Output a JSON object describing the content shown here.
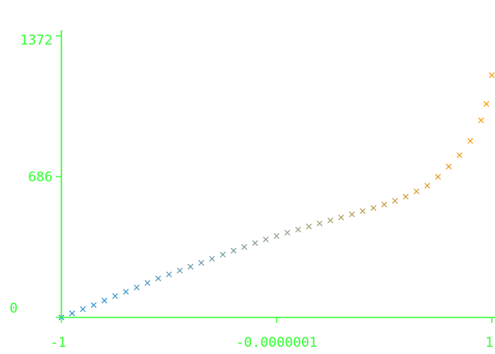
{
  "chart_data": {
    "type": "scatter",
    "title": "",
    "xlabel": "",
    "ylabel": "",
    "xlim": [
      -1,
      1
    ],
    "ylim": [
      0,
      1372
    ],
    "x_ticks": [
      {
        "value": -1,
        "label": "-1"
      },
      {
        "value": -1e-07,
        "label": "-0.0000001"
      },
      {
        "value": 1,
        "label": "1"
      }
    ],
    "y_ticks": [
      {
        "value": 0,
        "label": "0"
      },
      {
        "value": 686,
        "label": "686"
      },
      {
        "value": 1372,
        "label": "1372"
      }
    ],
    "marker": "x",
    "color_gradient": [
      "#1e8fe0",
      "#8f9f88",
      "#ff9900"
    ],
    "grid": false,
    "legend": "none",
    "series": [
      {
        "points": [
          [
            -1.0,
            0
          ],
          [
            -0.95,
            20
          ],
          [
            -0.9,
            40
          ],
          [
            -0.85,
            60
          ],
          [
            -0.8,
            82
          ],
          [
            -0.75,
            104
          ],
          [
            -0.7,
            125
          ],
          [
            -0.65,
            146
          ],
          [
            -0.6,
            168
          ],
          [
            -0.55,
            190
          ],
          [
            -0.5,
            210
          ],
          [
            -0.45,
            228
          ],
          [
            -0.4,
            247
          ],
          [
            -0.35,
            266
          ],
          [
            -0.3,
            286
          ],
          [
            -0.25,
            306
          ],
          [
            -0.2,
            325
          ],
          [
            -0.15,
            343
          ],
          [
            -0.1,
            362
          ],
          [
            -0.05,
            380
          ],
          [
            0.0,
            397
          ],
          [
            0.05,
            413
          ],
          [
            0.1,
            428
          ],
          [
            0.15,
            443
          ],
          [
            0.2,
            458
          ],
          [
            0.25,
            473
          ],
          [
            0.3,
            487
          ],
          [
            0.35,
            502
          ],
          [
            0.4,
            518
          ],
          [
            0.45,
            533
          ],
          [
            0.5,
            550
          ],
          [
            0.55,
            568
          ],
          [
            0.6,
            588
          ],
          [
            0.65,
            614
          ],
          [
            0.7,
            642
          ],
          [
            0.75,
            685
          ],
          [
            0.8,
            735
          ],
          [
            0.85,
            790
          ],
          [
            0.9,
            860
          ],
          [
            0.95,
            960
          ],
          [
            0.975,
            1040
          ],
          [
            1.0,
            1180
          ]
        ]
      }
    ]
  }
}
